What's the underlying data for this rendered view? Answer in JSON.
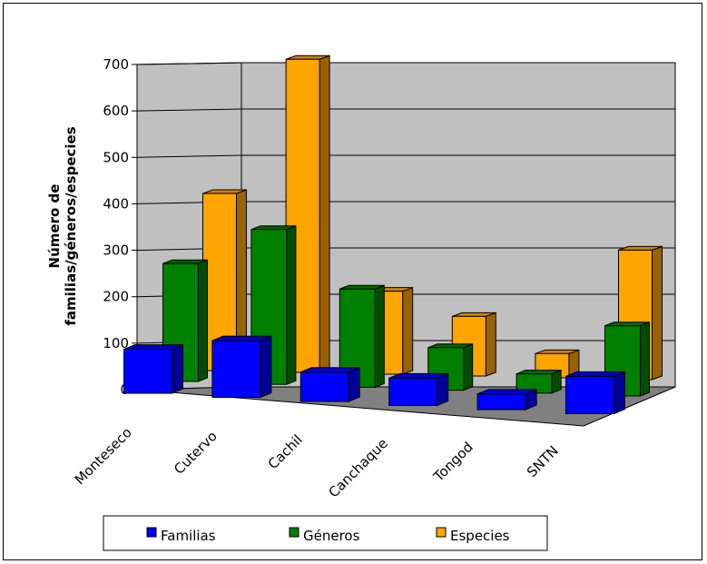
{
  "chart_data": {
    "type": "bar",
    "categories": [
      "Monteseco",
      "Cutervo",
      "Cachil",
      "Canchaque",
      "Tongod",
      "SNTN"
    ],
    "series": [
      {
        "name": "Familias",
        "values": [
          93,
          120,
          62,
          58,
          33,
          79
        ],
        "color": "#0000ff"
      },
      {
        "name": "Géneros",
        "values": [
          252,
          331,
          210,
          91,
          41,
          150
        ],
        "color": "#008000"
      },
      {
        "name": "Especies",
        "values": [
          380,
          672,
          178,
          128,
          52,
          278
        ],
        "color": "#ffa500"
      }
    ],
    "ylabel_lines": [
      "Número de",
      "familias/géneros/especies"
    ],
    "yticks": [
      0,
      100,
      200,
      300,
      400,
      500,
      600,
      700
    ],
    "ylim": [
      0,
      700
    ],
    "grid": true,
    "legend_position": "bottom"
  }
}
